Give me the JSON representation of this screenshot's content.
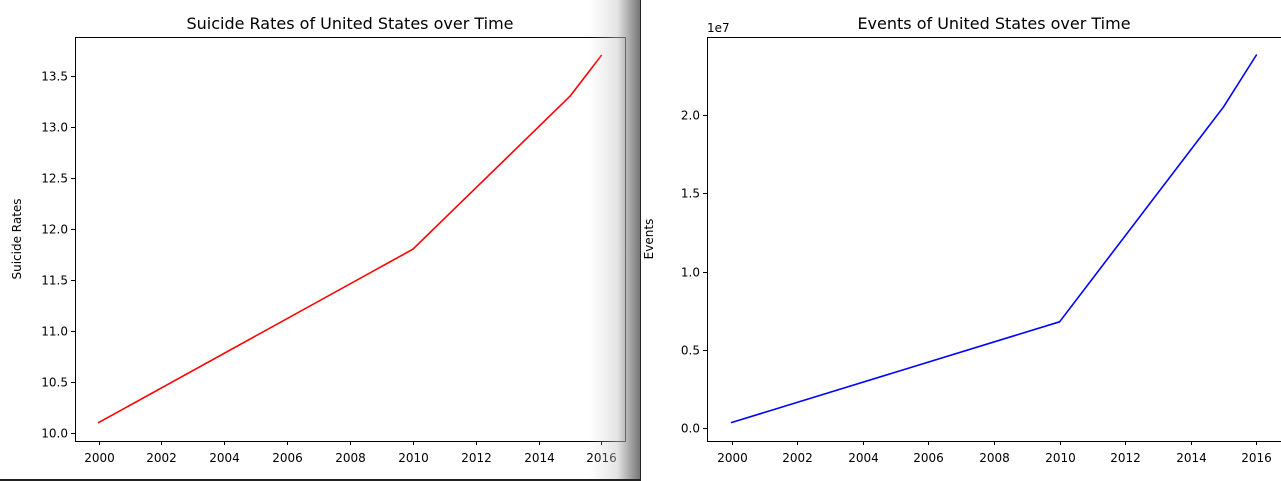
{
  "chart_data": [
    {
      "type": "line",
      "title": "Suicide Rates of United States over Time",
      "xlabel": "",
      "ylabel": "Suicide Rates",
      "x": [
        2000,
        2010,
        2015,
        2016
      ],
      "series": [
        {
          "values": [
            10.1,
            11.8,
            13.3,
            13.7
          ],
          "color": "#ff0000"
        }
      ],
      "xlim": [
        1999.25,
        2016.75
      ],
      "ylim": [
        9.92,
        13.88
      ],
      "xticks": [
        2000,
        2002,
        2004,
        2006,
        2008,
        2010,
        2012,
        2014,
        2016
      ],
      "yticks": [
        10.0,
        10.5,
        11.0,
        11.5,
        12.0,
        12.5,
        13.0,
        13.5
      ],
      "ytick_labels": [
        "10.0",
        "10.5",
        "11.0",
        "11.5",
        "12.0",
        "12.5",
        "13.0",
        "13.5"
      ],
      "offset_label": "",
      "grid": false
    },
    {
      "type": "line",
      "title": "Events of United States over Time",
      "xlabel": "",
      "ylabel": "Events",
      "x": [
        2000,
        2010,
        2015,
        2016
      ],
      "series": [
        {
          "values": [
            380000,
            6800000,
            20500000,
            23800000
          ],
          "color": "#0000ff"
        }
      ],
      "xlim": [
        1999.25,
        2016.75
      ],
      "ylim": [
        -800000,
        24950000
      ],
      "xticks": [
        2000,
        2002,
        2004,
        2006,
        2008,
        2010,
        2012,
        2014,
        2016
      ],
      "yticks": [
        0,
        5000000,
        10000000,
        15000000,
        20000000
      ],
      "ytick_labels": [
        "0.0",
        "0.5",
        "1.0",
        "1.5",
        "2.0"
      ],
      "offset_label": "1e7",
      "grid": false
    }
  ]
}
